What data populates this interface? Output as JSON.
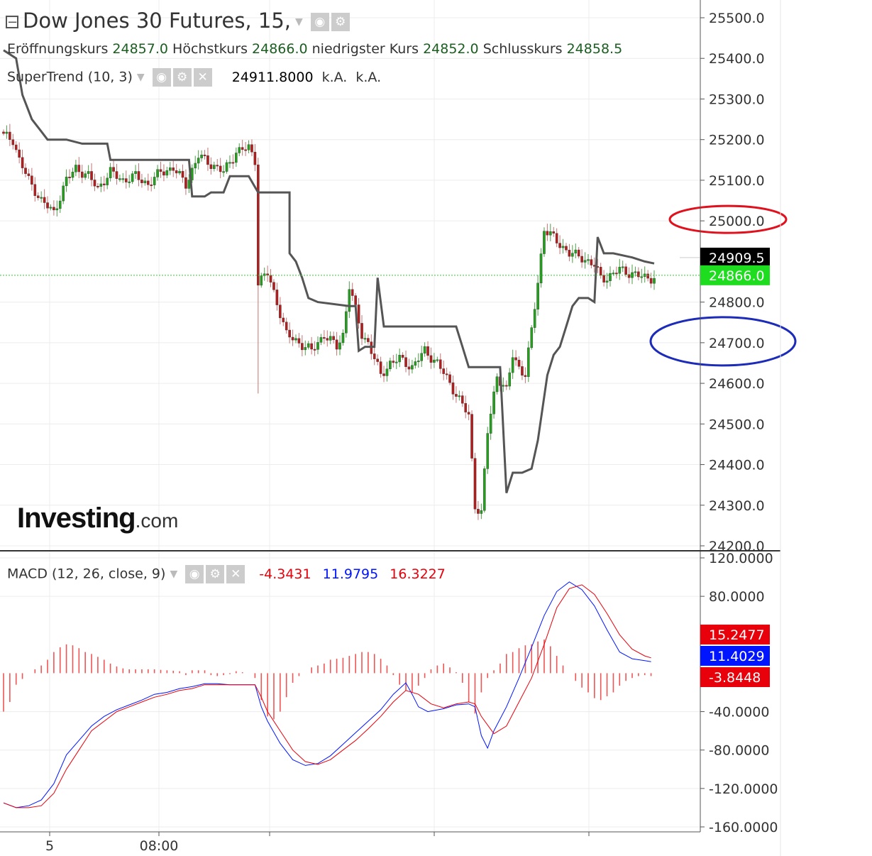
{
  "header": {
    "title": "Dow Jones 30 Futures, 15,",
    "ohlc": [
      {
        "label": "Eröffnungskurs",
        "value": "24857.0"
      },
      {
        "label": "Höchstkurs",
        "value": "24866.0"
      },
      {
        "label": "niedrigster Kurs",
        "value": "24852.0"
      },
      {
        "label": "Schlusskurs",
        "value": "24858.5"
      }
    ],
    "supertrend": {
      "label": "SuperTrend (10, 3)",
      "value": "24911.8000",
      "extra1": "k.A.",
      "extra2": "k.A."
    },
    "macd": {
      "label": "MACD (12, 26, close, 9)",
      "hist": "-4.3431",
      "macd": "11.9795",
      "signal": "16.3227",
      "colors": {
        "hist": "#e8000b",
        "macd": "#0015ff",
        "signal": "#e8000b"
      }
    }
  },
  "logo": {
    "main": "Investing",
    "suffix": ".com"
  },
  "chart_data": [
    {
      "type": "candlestick",
      "title": "Dow Jones 30 Futures, 15,",
      "interval": "15",
      "ylim": [
        24200,
        25500
      ],
      "y_ticks": [
        "25500.0",
        "25400.0",
        "25300.0",
        "25200.0",
        "25100.0",
        "25000.0",
        "24800.0",
        "24700.0",
        "24600.0",
        "24500.0",
        "24400.0",
        "24300.0",
        "24200.0"
      ],
      "x_tick_labels": [
        "5",
        "08:00"
      ],
      "current_price": "24866.0",
      "supertrend_price": "24909.5",
      "colors": {
        "up": "#22a11b",
        "down": "#b71c1c",
        "supertrend": "#555555",
        "price_line": "#33cc33",
        "price_badge": "#1edc1e",
        "st_badge": "#000000",
        "highlight_red": "#e0101c",
        "highlight_blue": "#1c2bb8"
      },
      "highlights": [
        {
          "price": 25000,
          "color": "red"
        },
        {
          "price": 24700,
          "color": "blue"
        }
      ],
      "close_anchors": [
        [
          0,
          25210
        ],
        [
          3,
          25200
        ],
        [
          5,
          25150
        ],
        [
          8,
          25100
        ],
        [
          12,
          25050
        ],
        [
          16,
          25020
        ],
        [
          20,
          25100
        ],
        [
          23,
          25130
        ],
        [
          27,
          25110
        ],
        [
          30,
          25080
        ],
        [
          34,
          25120
        ],
        [
          38,
          25100
        ],
        [
          42,
          25110
        ],
        [
          46,
          25090
        ],
        [
          50,
          25120
        ],
        [
          54,
          25130
        ],
        [
          58,
          25090
        ],
        [
          62,
          25160
        ],
        [
          66,
          25140
        ],
        [
          70,
          25120
        ],
        [
          74,
          25170
        ],
        [
          78,
          25180
        ],
        [
          80,
          25150
        ],
        [
          81,
          24850
        ],
        [
          84,
          24870
        ],
        [
          87,
          24800
        ],
        [
          90,
          24720
        ],
        [
          94,
          24700
        ],
        [
          98,
          24680
        ],
        [
          102,
          24720
        ],
        [
          106,
          24690
        ],
        [
          108,
          24720
        ],
        [
          110,
          24840
        ],
        [
          112,
          24780
        ],
        [
          114,
          24720
        ],
        [
          116,
          24700
        ],
        [
          120,
          24620
        ],
        [
          123,
          24650
        ],
        [
          126,
          24660
        ],
        [
          130,
          24640
        ],
        [
          134,
          24680
        ],
        [
          138,
          24650
        ],
        [
          142,
          24600
        ],
        [
          145,
          24560
        ],
        [
          148,
          24520
        ],
        [
          150,
          24300
        ],
        [
          152,
          24280
        ],
        [
          154,
          24480
        ],
        [
          157,
          24620
        ],
        [
          160,
          24580
        ],
        [
          162,
          24670
        ],
        [
          164,
          24640
        ],
        [
          166,
          24620
        ],
        [
          168,
          24730
        ],
        [
          170,
          24850
        ],
        [
          172,
          24980
        ],
        [
          176,
          24950
        ],
        [
          180,
          24920
        ],
        [
          184,
          24910
        ],
        [
          188,
          24890
        ],
        [
          190,
          24860
        ],
        [
          192,
          24860
        ],
        [
          196,
          24880
        ],
        [
          200,
          24870
        ],
        [
          204,
          24860
        ]
      ],
      "supertrend_line": [
        [
          0,
          25420
        ],
        [
          4,
          25400
        ],
        [
          6,
          25310
        ],
        [
          9,
          25250
        ],
        [
          12,
          25220
        ],
        [
          14,
          25200
        ],
        [
          20,
          25200
        ],
        [
          25,
          25190
        ],
        [
          28,
          25190
        ],
        [
          33,
          25190
        ],
        [
          34,
          25150
        ],
        [
          50,
          25150
        ],
        [
          56,
          25150
        ],
        [
          59,
          25150
        ],
        [
          60,
          25060
        ],
        [
          64,
          25060
        ],
        [
          66,
          25070
        ],
        [
          70,
          25070
        ],
        [
          72,
          25110
        ],
        [
          78,
          25110
        ],
        [
          81,
          25070
        ],
        [
          91,
          25070
        ],
        [
          91,
          24920
        ],
        [
          93,
          24900
        ],
        [
          95,
          24860
        ],
        [
          97,
          24810
        ],
        [
          100,
          24800
        ],
        [
          110,
          24790
        ],
        [
          112,
          24790
        ],
        [
          113,
          24680
        ],
        [
          115,
          24690
        ],
        [
          118,
          24690
        ],
        [
          119,
          24860
        ],
        [
          121,
          24740
        ],
        [
          122,
          24740
        ],
        [
          144,
          24740
        ],
        [
          146,
          24690
        ],
        [
          148,
          24640
        ],
        [
          152,
          24640
        ],
        [
          154,
          24640
        ],
        [
          158,
          24640
        ],
        [
          160,
          24330
        ],
        [
          162,
          24380
        ],
        [
          165,
          24380
        ],
        [
          168,
          24390
        ],
        [
          170,
          24460
        ],
        [
          173,
          24620
        ],
        [
          175,
          24670
        ],
        [
          177,
          24690
        ],
        [
          179,
          24740
        ],
        [
          181,
          24790
        ],
        [
          183,
          24810
        ],
        [
          184,
          24810
        ],
        [
          186,
          24810
        ],
        [
          188,
          24800
        ],
        [
          189,
          24960
        ],
        [
          191,
          24920
        ],
        [
          194,
          24920
        ],
        [
          200,
          24910
        ],
        [
          204,
          24900
        ],
        [
          207,
          24895
        ]
      ]
    },
    {
      "type": "macd",
      "title": "MACD (12, 26, close, 9)",
      "ylim": [
        -160,
        120
      ],
      "y_ticks": [
        "120.0000",
        "80.0000",
        "-40.0000",
        "-80.0000",
        "-120.0000",
        "-160.0000"
      ],
      "badges": [
        {
          "value": "15.2477",
          "color": "#e8000b"
        },
        {
          "value": "11.4029",
          "color": "#0015ff"
        },
        {
          "value": "-3.8448",
          "color": "#e8000b"
        }
      ],
      "macd_line": [
        [
          0,
          -135
        ],
        [
          4,
          -140
        ],
        [
          8,
          -138
        ],
        [
          12,
          -132
        ],
        [
          16,
          -115
        ],
        [
          20,
          -85
        ],
        [
          24,
          -70
        ],
        [
          28,
          -55
        ],
        [
          32,
          -45
        ],
        [
          36,
          -38
        ],
        [
          40,
          -33
        ],
        [
          44,
          -28
        ],
        [
          48,
          -22
        ],
        [
          52,
          -20
        ],
        [
          56,
          -16
        ],
        [
          60,
          -14
        ],
        [
          64,
          -11
        ],
        [
          68,
          -11
        ],
        [
          72,
          -12
        ],
        [
          78,
          -12
        ],
        [
          80,
          -12
        ],
        [
          82,
          -35
        ],
        [
          84,
          -50
        ],
        [
          88,
          -73
        ],
        [
          92,
          -90
        ],
        [
          96,
          -96
        ],
        [
          100,
          -94
        ],
        [
          104,
          -86
        ],
        [
          108,
          -74
        ],
        [
          112,
          -62
        ],
        [
          116,
          -50
        ],
        [
          120,
          -38
        ],
        [
          124,
          -22
        ],
        [
          128,
          -10
        ],
        [
          130,
          -22
        ],
        [
          132,
          -35
        ],
        [
          135,
          -40
        ],
        [
          140,
          -37
        ],
        [
          144,
          -33
        ],
        [
          148,
          -32
        ],
        [
          150,
          -35
        ],
        [
          152,
          -65
        ],
        [
          154,
          -78
        ],
        [
          156,
          -60
        ],
        [
          160,
          -35
        ],
        [
          164,
          -5
        ],
        [
          168,
          27
        ],
        [
          172,
          60
        ],
        [
          176,
          85
        ],
        [
          180,
          95
        ],
        [
          184,
          87
        ],
        [
          188,
          70
        ],
        [
          192,
          45
        ],
        [
          196,
          22
        ],
        [
          200,
          15
        ],
        [
          204,
          13
        ],
        [
          206,
          12
        ]
      ],
      "signal_line": [
        [
          0,
          -135
        ],
        [
          4,
          -140
        ],
        [
          8,
          -140
        ],
        [
          12,
          -138
        ],
        [
          16,
          -125
        ],
        [
          20,
          -100
        ],
        [
          24,
          -80
        ],
        [
          28,
          -60
        ],
        [
          32,
          -50
        ],
        [
          36,
          -40
        ],
        [
          40,
          -35
        ],
        [
          44,
          -30
        ],
        [
          48,
          -25
        ],
        [
          52,
          -22
        ],
        [
          56,
          -18
        ],
        [
          60,
          -16
        ],
        [
          64,
          -12
        ],
        [
          68,
          -12
        ],
        [
          72,
          -12
        ],
        [
          80,
          -12
        ],
        [
          82,
          -25
        ],
        [
          84,
          -40
        ],
        [
          88,
          -60
        ],
        [
          92,
          -80
        ],
        [
          96,
          -92
        ],
        [
          100,
          -95
        ],
        [
          104,
          -90
        ],
        [
          108,
          -80
        ],
        [
          112,
          -70
        ],
        [
          116,
          -58
        ],
        [
          120,
          -45
        ],
        [
          124,
          -30
        ],
        [
          128,
          -18
        ],
        [
          132,
          -22
        ],
        [
          136,
          -32
        ],
        [
          140,
          -36
        ],
        [
          144,
          -32
        ],
        [
          148,
          -30
        ],
        [
          150,
          -32
        ],
        [
          152,
          -45
        ],
        [
          156,
          -63
        ],
        [
          160,
          -55
        ],
        [
          164,
          -30
        ],
        [
          168,
          -5
        ],
        [
          172,
          30
        ],
        [
          176,
          68
        ],
        [
          180,
          88
        ],
        [
          184,
          92
        ],
        [
          188,
          82
        ],
        [
          192,
          62
        ],
        [
          196,
          40
        ],
        [
          200,
          25
        ],
        [
          204,
          18
        ],
        [
          206,
          16
        ]
      ],
      "histogram": [
        [
          0,
          -40
        ],
        [
          2,
          -30
        ],
        [
          4,
          -12
        ],
        [
          8,
          0
        ],
        [
          10,
          4
        ],
        [
          12,
          8
        ],
        [
          14,
          14
        ],
        [
          16,
          22
        ],
        [
          18,
          27
        ],
        [
          20,
          30
        ],
        [
          22,
          29
        ],
        [
          24,
          26
        ],
        [
          26,
          22
        ],
        [
          28,
          20
        ],
        [
          30,
          17
        ],
        [
          32,
          14
        ],
        [
          34,
          10
        ],
        [
          36,
          7
        ],
        [
          38,
          5
        ],
        [
          40,
          4
        ],
        [
          44,
          4
        ],
        [
          48,
          4
        ],
        [
          52,
          3
        ],
        [
          56,
          2
        ],
        [
          58,
          -2
        ],
        [
          60,
          3
        ],
        [
          64,
          3
        ],
        [
          66,
          -2
        ],
        [
          68,
          -3
        ],
        [
          70,
          -2
        ],
        [
          72,
          -1
        ],
        [
          74,
          2
        ],
        [
          76,
          1
        ],
        [
          78,
          0
        ],
        [
          80,
          -5
        ],
        [
          82,
          -28
        ],
        [
          84,
          -45
        ],
        [
          86,
          -48
        ],
        [
          88,
          -40
        ],
        [
          90,
          -25
        ],
        [
          92,
          -10
        ],
        [
          94,
          -3
        ],
        [
          96,
          0
        ],
        [
          98,
          6
        ],
        [
          100,
          8
        ],
        [
          102,
          10
        ],
        [
          104,
          14
        ],
        [
          106,
          15
        ],
        [
          108,
          16
        ],
        [
          110,
          18
        ],
        [
          112,
          20
        ],
        [
          114,
          22
        ],
        [
          116,
          22
        ],
        [
          118,
          20
        ],
        [
          120,
          15
        ],
        [
          122,
          8
        ],
        [
          124,
          -2
        ],
        [
          126,
          -12
        ],
        [
          128,
          -18
        ],
        [
          130,
          -20
        ],
        [
          132,
          -13
        ],
        [
          134,
          -5
        ],
        [
          136,
          4
        ],
        [
          138,
          8
        ],
        [
          140,
          10
        ],
        [
          142,
          6
        ],
        [
          144,
          1
        ],
        [
          146,
          -10
        ],
        [
          148,
          -30
        ],
        [
          150,
          -42
        ],
        [
          152,
          -20
        ],
        [
          154,
          -5
        ],
        [
          156,
          3
        ],
        [
          158,
          10
        ],
        [
          160,
          20
        ],
        [
          162,
          22
        ],
        [
          164,
          26
        ],
        [
          166,
          29
        ],
        [
          168,
          30
        ],
        [
          170,
          33
        ],
        [
          172,
          35
        ],
        [
          174,
          28
        ],
        [
          176,
          18
        ],
        [
          178,
          8
        ],
        [
          180,
          0
        ],
        [
          182,
          -8
        ],
        [
          184,
          -15
        ],
        [
          186,
          -20
        ],
        [
          188,
          -26
        ],
        [
          190,
          -28
        ],
        [
          192,
          -24
        ],
        [
          194,
          -20
        ],
        [
          196,
          -13
        ],
        [
          198,
          -8
        ],
        [
          200,
          -5
        ],
        [
          202,
          -3
        ],
        [
          204,
          -2
        ],
        [
          206,
          -3
        ]
      ]
    }
  ]
}
